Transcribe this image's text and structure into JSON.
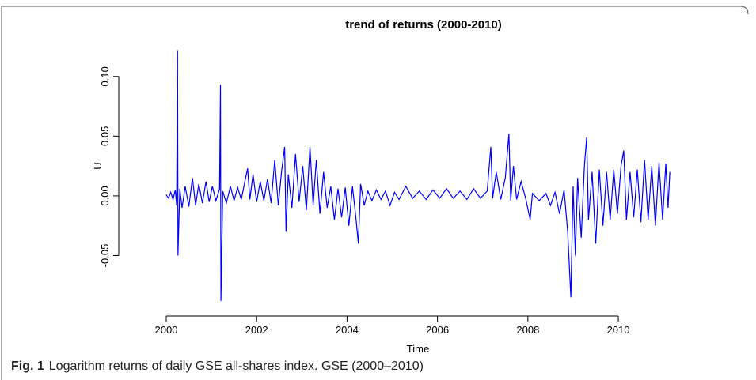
{
  "chart_data": {
    "type": "line",
    "title": "trend of returns (2000-2010)",
    "xlabel": "Time",
    "ylabel": "U",
    "color": "#0000ff",
    "x": [
      2000.0,
      2000.05,
      2000.1,
      2000.15,
      2000.2,
      2000.23,
      2000.25,
      2000.26,
      2000.3,
      2000.35,
      2000.42,
      2000.5,
      2000.58,
      2000.65,
      2000.72,
      2000.8,
      2000.88,
      2000.95,
      2001.02,
      2001.1,
      2001.18,
      2001.2,
      2001.21,
      2001.25,
      2001.33,
      2001.42,
      2001.5,
      2001.58,
      2001.66,
      2001.74,
      2001.8,
      2001.85,
      2001.92,
      2002.0,
      2002.08,
      2002.16,
      2002.24,
      2002.32,
      2002.4,
      2002.48,
      2002.55,
      2002.62,
      2002.65,
      2002.7,
      2002.78,
      2002.86,
      2002.94,
      2003.02,
      2003.1,
      2003.18,
      2003.25,
      2003.32,
      2003.4,
      2003.48,
      2003.56,
      2003.64,
      2003.72,
      2003.8,
      2003.88,
      2003.96,
      2004.04,
      2004.12,
      2004.2,
      2004.25,
      2004.3,
      2004.38,
      2004.46,
      2004.55,
      2004.65,
      2004.75,
      2004.85,
      2004.95,
      2005.05,
      2005.15,
      2005.3,
      2005.45,
      2005.6,
      2005.75,
      2005.9,
      2006.05,
      2006.2,
      2006.35,
      2006.5,
      2006.65,
      2006.8,
      2006.95,
      2007.1,
      2007.18,
      2007.22,
      2007.3,
      2007.4,
      2007.5,
      2007.58,
      2007.62,
      2007.68,
      2007.75,
      2007.85,
      2007.95,
      2008.05,
      2008.1,
      2008.25,
      2008.4,
      2008.5,
      2008.6,
      2008.7,
      2008.8,
      2008.88,
      2008.95,
      2009.0,
      2009.05,
      2009.1,
      2009.18,
      2009.25,
      2009.3,
      2009.34,
      2009.42,
      2009.5,
      2009.58,
      2009.66,
      2009.74,
      2009.82,
      2009.9,
      2009.98,
      2010.06,
      2010.12,
      2010.18,
      2010.26,
      2010.34,
      2010.42,
      2010.5,
      2010.58,
      2010.66,
      2010.74,
      2010.82,
      2010.9,
      2010.98,
      2011.05,
      2011.1,
      2011.14
    ],
    "values": [
      0.001,
      -0.002,
      0.003,
      -0.003,
      0.005,
      -0.008,
      0.122,
      -0.05,
      0.006,
      -0.01,
      0.008,
      -0.009,
      0.015,
      -0.008,
      0.01,
      -0.006,
      0.012,
      -0.005,
      0.008,
      -0.004,
      0.006,
      0.093,
      -0.088,
      0.004,
      -0.006,
      0.008,
      -0.004,
      0.007,
      -0.003,
      0.012,
      0.023,
      -0.003,
      0.018,
      -0.005,
      0.012,
      -0.004,
      0.014,
      -0.006,
      0.03,
      -0.008,
      0.02,
      0.041,
      -0.03,
      0.018,
      -0.01,
      0.035,
      -0.005,
      0.025,
      -0.012,
      0.041,
      -0.008,
      0.03,
      -0.015,
      0.02,
      -0.01,
      0.008,
      -0.02,
      0.006,
      -0.018,
      0.007,
      -0.025,
      0.008,
      -0.02,
      -0.04,
      0.01,
      -0.008,
      0.004,
      -0.004,
      0.005,
      -0.003,
      0.004,
      -0.008,
      0.003,
      -0.003,
      0.008,
      -0.002,
      0.004,
      -0.003,
      0.005,
      -0.002,
      0.006,
      -0.002,
      0.004,
      -0.003,
      0.006,
      -0.002,
      0.004,
      0.041,
      -0.002,
      0.02,
      -0.003,
      0.015,
      0.052,
      -0.004,
      0.025,
      -0.003,
      0.012,
      -0.002,
      -0.02,
      0.002,
      -0.004,
      0.002,
      -0.008,
      0.003,
      -0.015,
      0.005,
      -0.03,
      -0.085,
      0.008,
      -0.05,
      0.015,
      -0.035,
      0.025,
      0.049,
      -0.02,
      0.02,
      -0.04,
      0.022,
      -0.025,
      0.02,
      -0.02,
      0.022,
      -0.015,
      0.025,
      0.038,
      -0.02,
      0.02,
      -0.018,
      0.022,
      -0.022,
      0.03,
      -0.02,
      0.025,
      -0.025,
      0.028,
      -0.02,
      0.027,
      -0.01,
      0.02
    ],
    "xlim": [
      1999.2,
      2011.4
    ],
    "xticks": [
      2000,
      2002,
      2004,
      2006,
      2008,
      2010
    ],
    "ylim": [
      -0.095,
      0.125
    ],
    "yticks": [
      {
        "value": 0.1,
        "label": "0.10"
      },
      0.05,
      {
        "value": 0,
        "label": "0.00"
      },
      -0.05
    ]
  },
  "caption": {
    "label": "Fig. 1",
    "text": "Logarithm returns of daily GSE all-shares index. GSE (2000–2010)"
  }
}
